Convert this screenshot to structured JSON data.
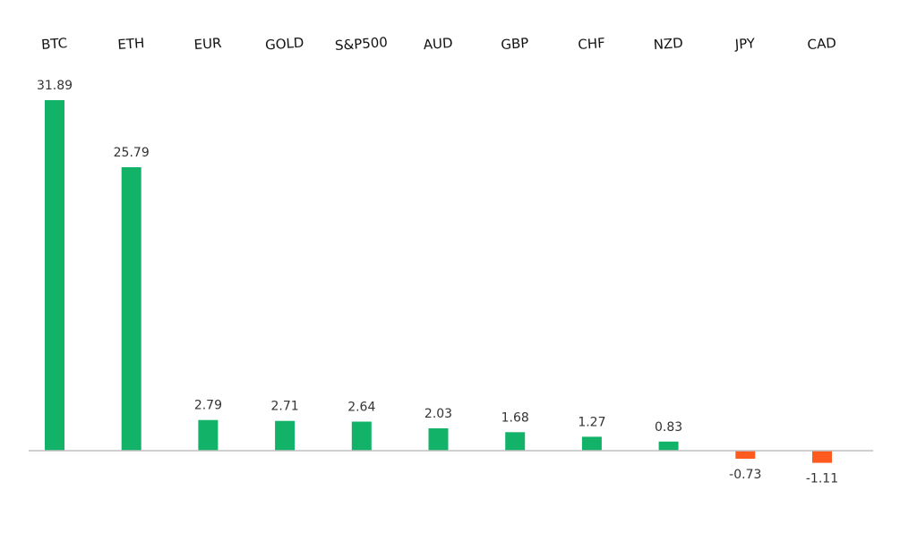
{
  "chart_data": {
    "type": "bar",
    "title": "",
    "xlabel": "",
    "ylabel": "",
    "categories": [
      "BTC",
      "ETH",
      "EUR",
      "GOLD",
      "S&P500",
      "AUD",
      "GBP",
      "CHF",
      "NZD",
      "JPY",
      "CAD"
    ],
    "values": [
      31.89,
      25.79,
      2.79,
      2.71,
      2.64,
      2.03,
      1.68,
      1.27,
      0.83,
      -0.73,
      -1.11
    ],
    "value_labels": [
      "31.89",
      "25.79",
      "2.79",
      "2.71",
      "2.64",
      "2.03",
      "1.68",
      "1.27",
      "0.83",
      "-0.73",
      "-1.11"
    ],
    "ylim": [
      -1.11,
      31.89
    ],
    "grid": false,
    "legend": "none",
    "category_labels_position": "top",
    "colors": {
      "positive": "#12B368",
      "negative": "#FF5A1F",
      "axis": "#BFBFBF"
    }
  }
}
